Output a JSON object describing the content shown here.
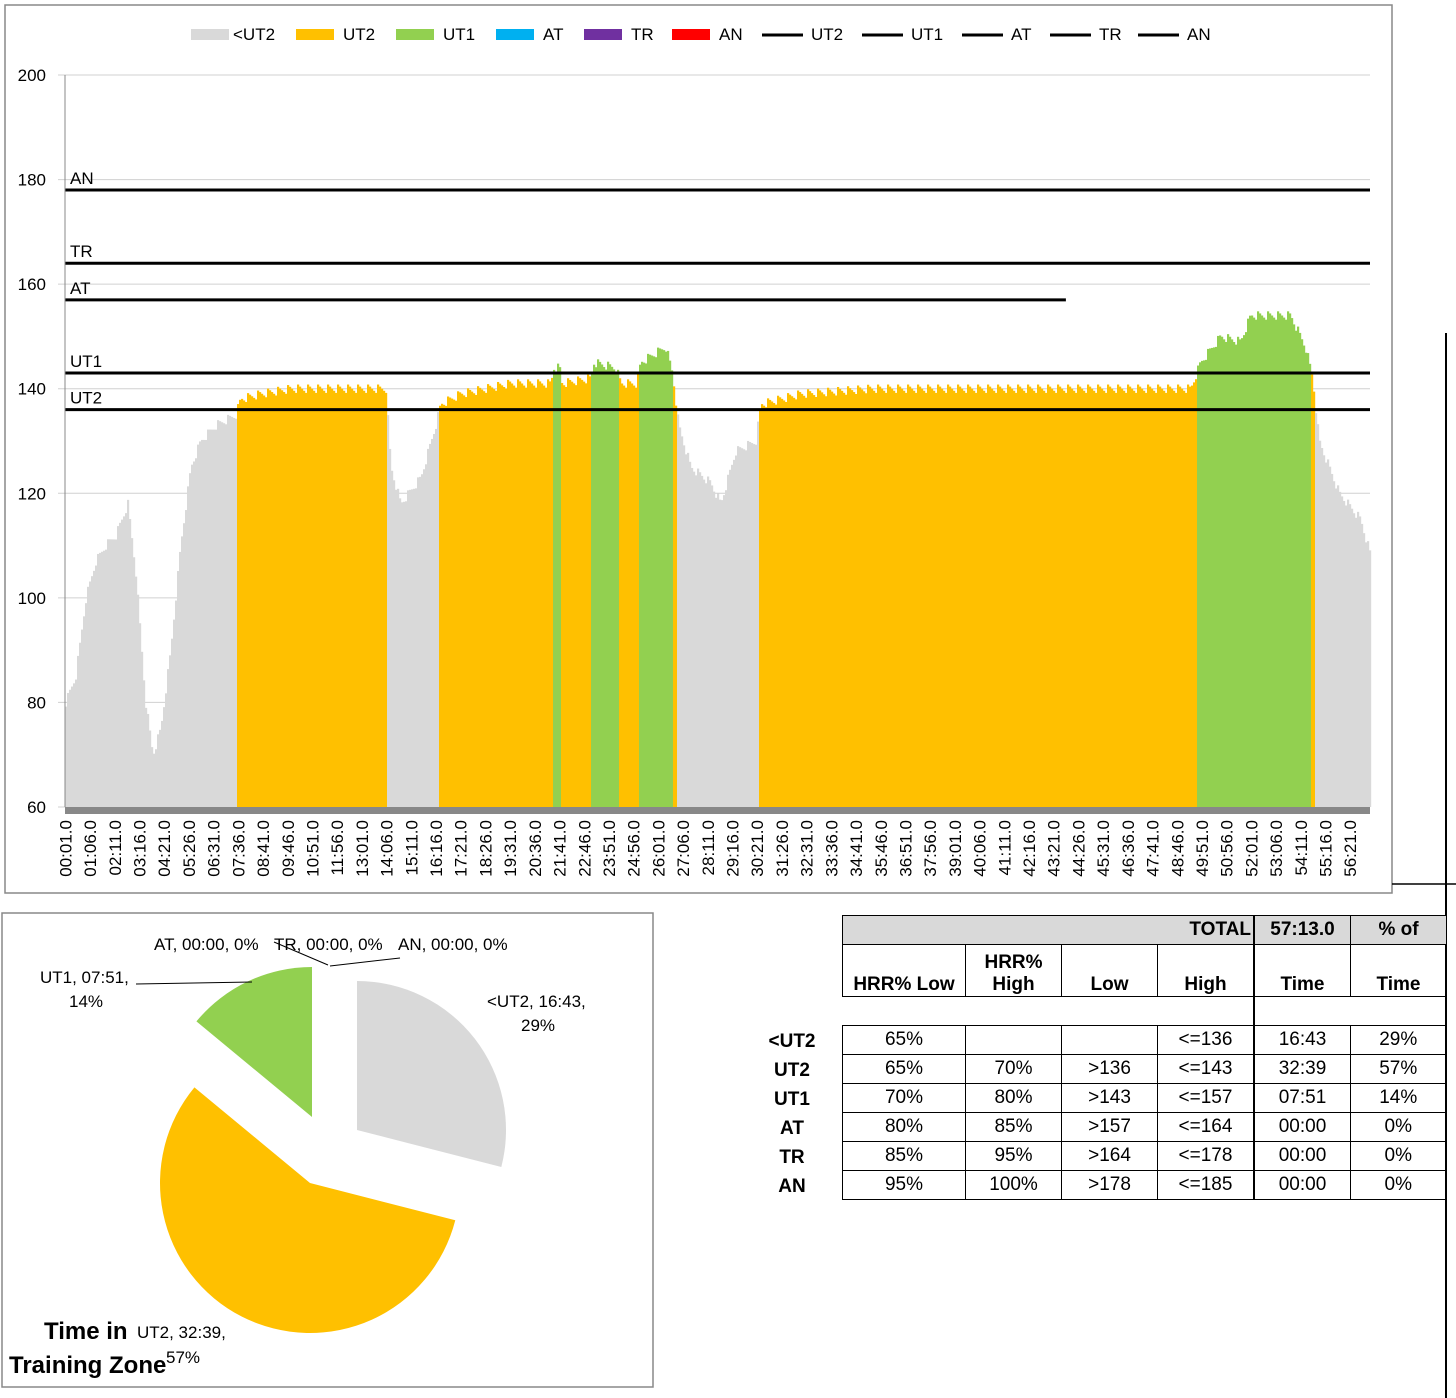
{
  "colors": {
    "<UT2": "#d9d9d9",
    "UT2": "#ffc000",
    "UT1": "#92d050",
    "AT": "#00b0f0",
    "TR": "#7030a0",
    "AN": "#ff0000",
    "line": "#000000"
  },
  "chart_data": [
    {
      "type": "bar",
      "title": "",
      "legend": {
        "placement": "top",
        "entries": [
          "<UT2",
          "UT2",
          "UT1",
          "AT",
          "TR",
          "AN",
          "UT2",
          "UT1",
          "AT",
          "TR",
          "AN"
        ]
      },
      "ylim": [
        60,
        200
      ],
      "yticks": [
        "60",
        "80",
        "100",
        "120",
        "140",
        "160",
        "180",
        "200"
      ],
      "ytick_values": [
        60,
        80,
        100,
        120,
        140,
        160,
        180,
        200
      ],
      "xlim_seconds": [
        0,
        3433
      ],
      "xtick_labels": [
        "00:01.0",
        "01:06.0",
        "02:11.0",
        "03:16.0",
        "04:21.0",
        "05:26.0",
        "06:31.0",
        "07:36.0",
        "08:41.0",
        "09:46.0",
        "10:51.0",
        "11:56.0",
        "13:01.0",
        "14:06.0",
        "15:11.0",
        "16:16.0",
        "17:21.0",
        "18:26.0",
        "19:31.0",
        "20:36.0",
        "21:41.0",
        "22:46.0",
        "23:51.0",
        "24:56.0",
        "26:01.0",
        "27:06.0",
        "28:11.0",
        "29:16.0",
        "30:21.0",
        "31:26.0",
        "32:31.0",
        "33:36.0",
        "34:41.0",
        "35:46.0",
        "36:51.0",
        "37:56.0",
        "39:01.0",
        "40:06.0",
        "41:11.0",
        "42:16.0",
        "43:21.0",
        "44:26.0",
        "45:31.0",
        "46:36.0",
        "47:41.0",
        "48:46.0",
        "49:51.0",
        "50:56.0",
        "52:01.0",
        "53:06.0",
        "54:11.0",
        "55:16.0",
        "56:21.0"
      ],
      "zone_thresholds": [
        {
          "name": "UT2",
          "value": 136,
          "end_s": 3433
        },
        {
          "name": "UT1",
          "value": 143,
          "end_s": 3433
        },
        {
          "name": "AT",
          "value": 157,
          "end_s": 2633
        },
        {
          "name": "TR",
          "value": 164,
          "end_s": 3433
        },
        {
          "name": "AN",
          "value": 178,
          "end_s": 3433
        }
      ],
      "heart_rate_series_seconds_bpm": [
        [
          0,
          80
        ],
        [
          26,
          85
        ],
        [
          53,
          100
        ],
        [
          79,
          107
        ],
        [
          105,
          110
        ],
        [
          132,
          112
        ],
        [
          163,
          118
        ],
        [
          184,
          105
        ],
        [
          210,
          80
        ],
        [
          229,
          70
        ],
        [
          250,
          75
        ],
        [
          276,
          90
        ],
        [
          302,
          110
        ],
        [
          329,
          125
        ],
        [
          355,
          130
        ],
        [
          395,
          133
        ],
        [
          447,
          135
        ],
        [
          460,
          138
        ],
        [
          513,
          139
        ],
        [
          592,
          140
        ],
        [
          842,
          140
        ],
        [
          855,
          125
        ],
        [
          881,
          118
        ],
        [
          934,
          123
        ],
        [
          973,
          133
        ],
        [
          986,
          137
        ],
        [
          1039,
          139
        ],
        [
          1170,
          141
        ],
        [
          1276,
          141
        ],
        [
          1283,
          144
        ],
        [
          1299,
          144
        ],
        [
          1305,
          141
        ],
        [
          1381,
          142
        ],
        [
          1389,
          145
        ],
        [
          1447,
          144
        ],
        [
          1460,
          141
        ],
        [
          1502,
          141
        ],
        [
          1512,
          145
        ],
        [
          1578,
          148
        ],
        [
          1596,
          143
        ],
        [
          1612,
          133
        ],
        [
          1644,
          125
        ],
        [
          1696,
          122
        ],
        [
          1723,
          118
        ],
        [
          1762,
          128
        ],
        [
          1815,
          130
        ],
        [
          1828,
          137
        ],
        [
          1933,
          139
        ],
        [
          2117,
          140
        ],
        [
          2459,
          140
        ],
        [
          2959,
          140
        ],
        [
          2985,
          145
        ],
        [
          3038,
          150
        ],
        [
          3090,
          149
        ],
        [
          3117,
          154
        ],
        [
          3222,
          154
        ],
        [
          3261,
          148
        ],
        [
          3280,
          142
        ],
        [
          3297,
          130
        ],
        [
          3350,
          120
        ],
        [
          3406,
          115
        ],
        [
          3433,
          108
        ]
      ]
    },
    {
      "type": "pie",
      "title": "Time in Training Zone",
      "title_lines": [
        "Time in",
        "Training Zone"
      ],
      "slices": [
        {
          "name": "<UT2",
          "time": "16:43",
          "percent": 29,
          "label_lines": [
            "<UT2, 16:43,",
            "29%"
          ]
        },
        {
          "name": "UT2",
          "time": "32:39",
          "percent": 57,
          "label_lines": [
            "UT2, 32:39,",
            "57%"
          ]
        },
        {
          "name": "UT1",
          "time": "07:51",
          "percent": 14,
          "label_lines": [
            "UT1, 07:51,",
            "14%"
          ]
        },
        {
          "name": "AT",
          "time": "00:00",
          "percent": 0,
          "label": "AT, 00:00, 0%"
        },
        {
          "name": "TR",
          "time": "00:00",
          "percent": 0,
          "label": "TR, 00:00, 0%"
        },
        {
          "name": "AN",
          "time": "00:00",
          "percent": 0,
          "label": "AN, 00:00, 0%"
        }
      ]
    }
  ],
  "table": {
    "total_label": "TOTAL",
    "total_time": "57:13.0",
    "pct_header_top": "% of",
    "headers": [
      "HRR% Low",
      "HRR%\nHigh",
      "Low",
      "High",
      "Time",
      "Time"
    ],
    "rows": [
      {
        "zone": "<UT2",
        "cells": [
          "65%",
          "",
          "",
          "<=136",
          "16:43",
          "29%"
        ]
      },
      {
        "zone": "UT2",
        "cells": [
          "65%",
          "70%",
          ">136",
          "<=143",
          "32:39",
          "57%"
        ]
      },
      {
        "zone": "UT1",
        "cells": [
          "70%",
          "80%",
          ">143",
          "<=157",
          "07:51",
          "14%"
        ]
      },
      {
        "zone": "AT",
        "cells": [
          "80%",
          "85%",
          ">157",
          "<=164",
          "00:00",
          "0%"
        ]
      },
      {
        "zone": "TR",
        "cells": [
          "85%",
          "95%",
          ">164",
          "<=178",
          "00:00",
          "0%"
        ]
      },
      {
        "zone": "AN",
        "cells": [
          "95%",
          "100%",
          ">178",
          "<=185",
          "00:00",
          "0%"
        ]
      }
    ]
  }
}
